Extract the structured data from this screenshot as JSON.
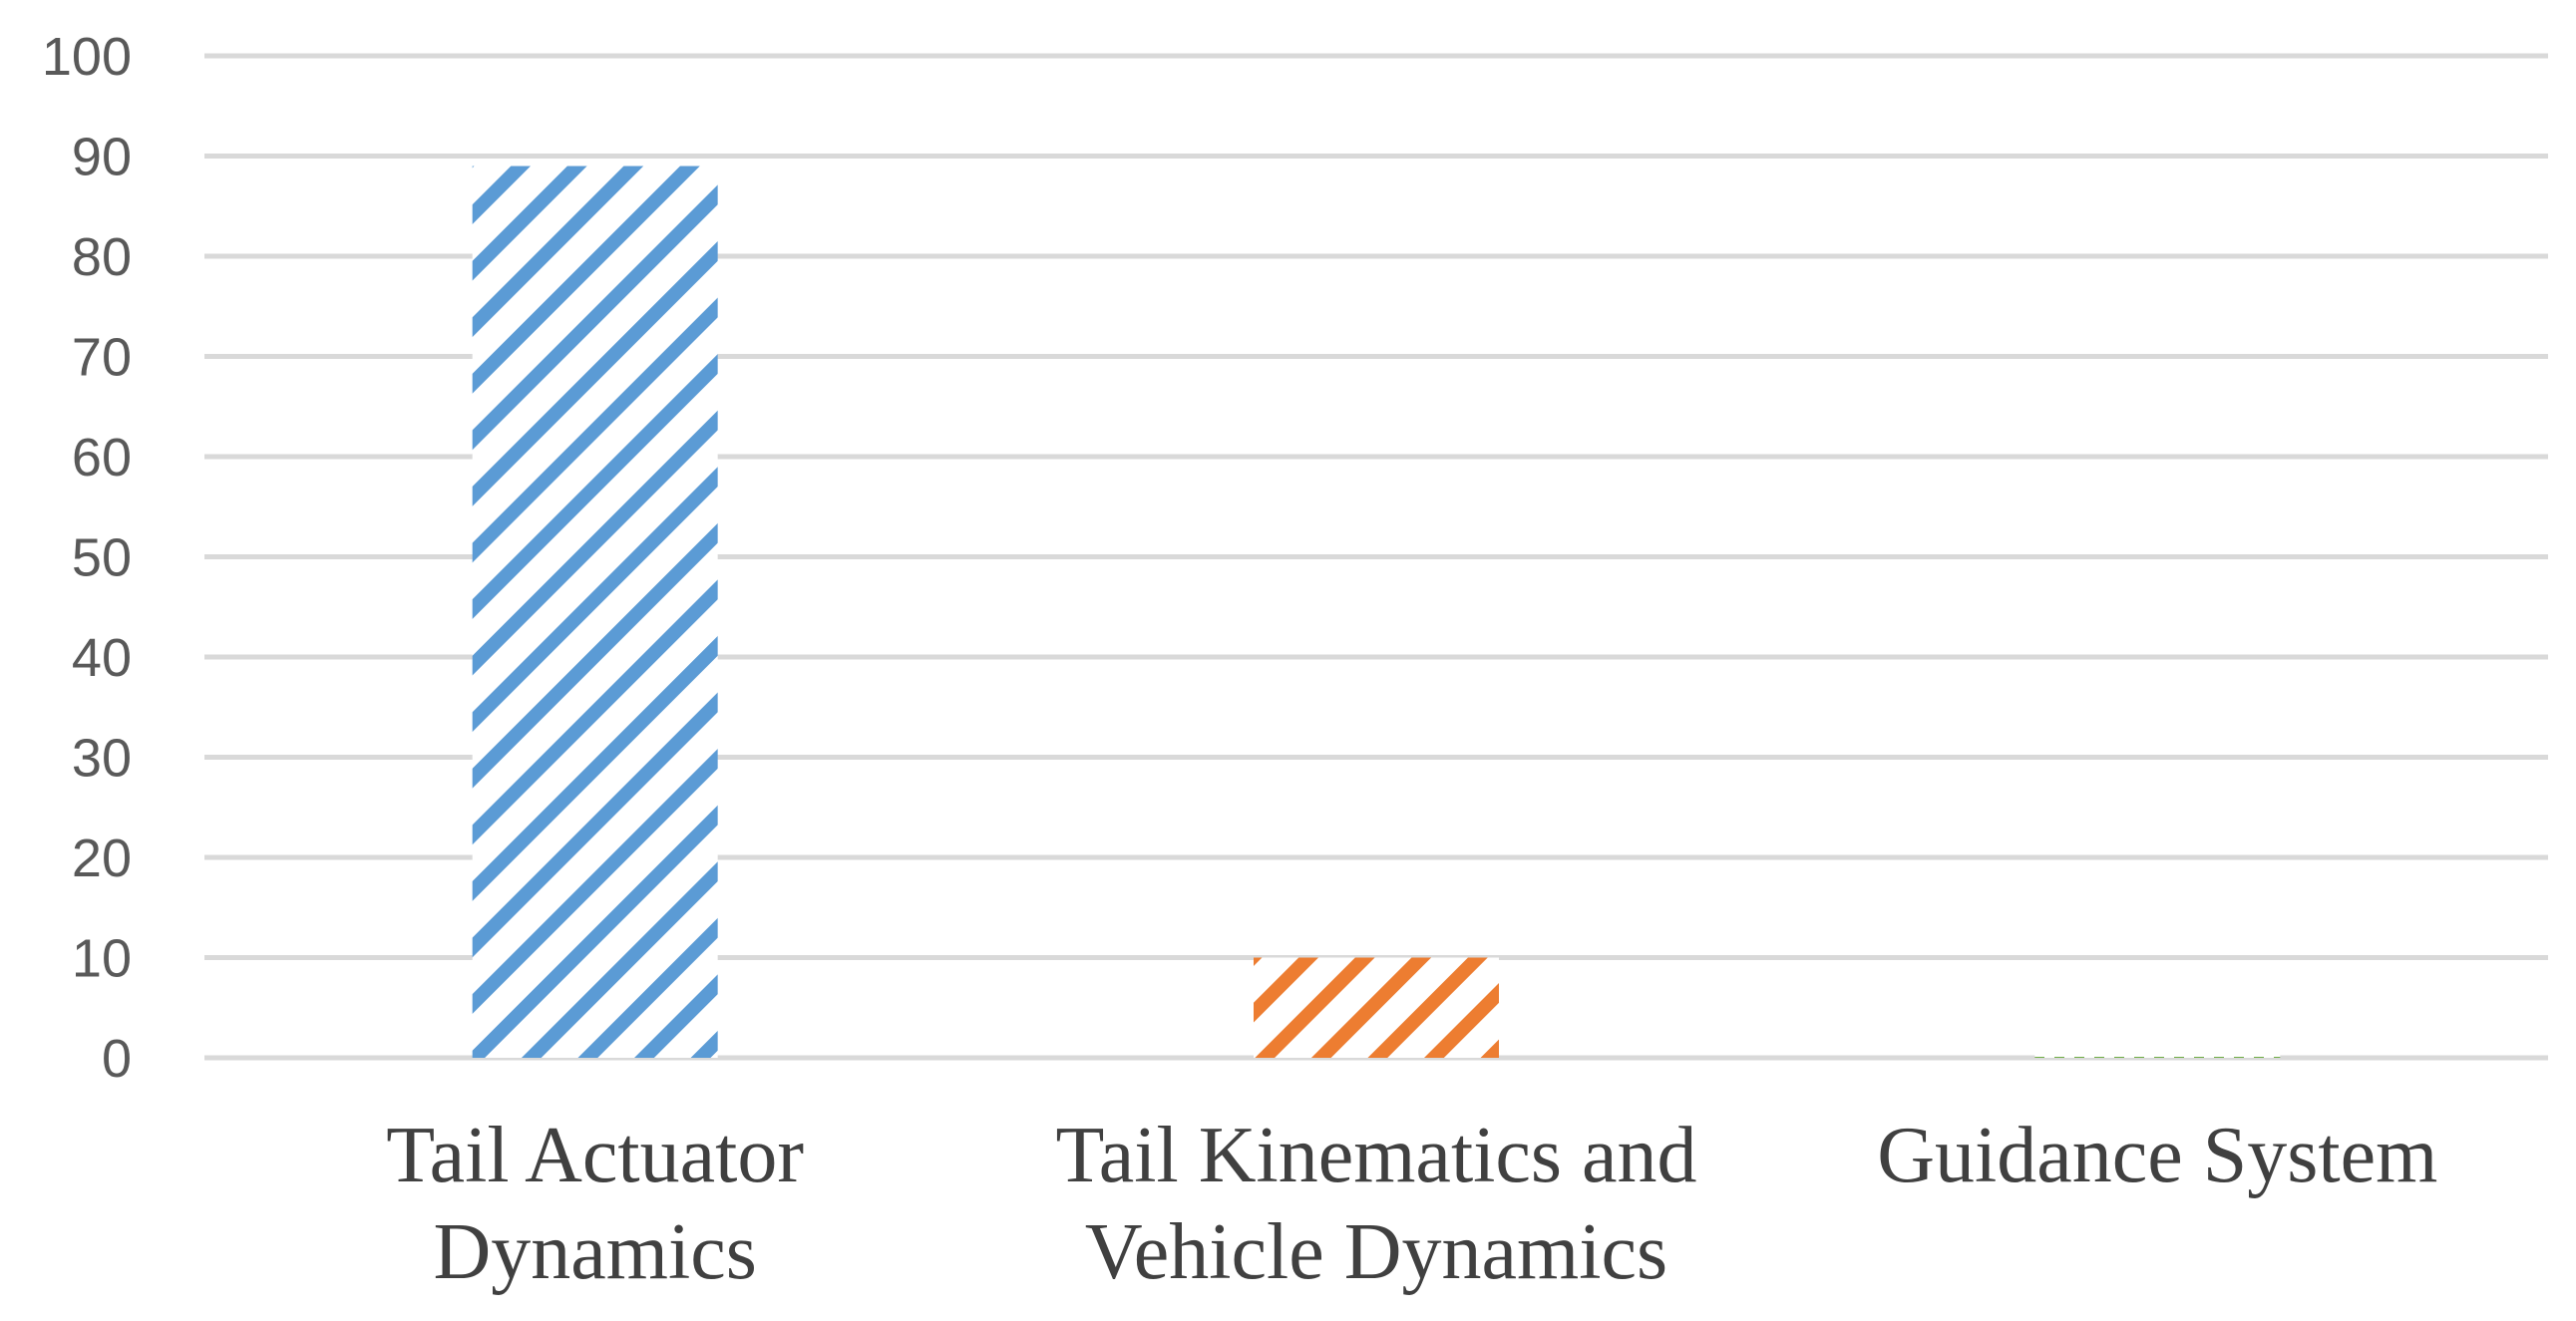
{
  "chart_data": {
    "type": "bar",
    "title": "",
    "xlabel": "",
    "ylabel": "",
    "categories": [
      [
        "Tail Actuator",
        "Dynamics"
      ],
      [
        "Tail Kinematics and",
        "Vehicle Dynamics"
      ],
      [
        "Guidance System"
      ]
    ],
    "values": [
      89,
      10,
      1
    ],
    "ylim": [
      0,
      100
    ],
    "yticks": [
      "0",
      "10",
      "20",
      "30",
      "40",
      "50",
      "60",
      "70",
      "80",
      "90",
      "100"
    ],
    "grid": true,
    "legend": "none",
    "colors": [
      "#5b9bd5",
      "#ed7d31",
      "#70ad47"
    ],
    "patterns": [
      "wide-downward-diagonal",
      "wide-downward-diagonal",
      "dotted"
    ]
  }
}
